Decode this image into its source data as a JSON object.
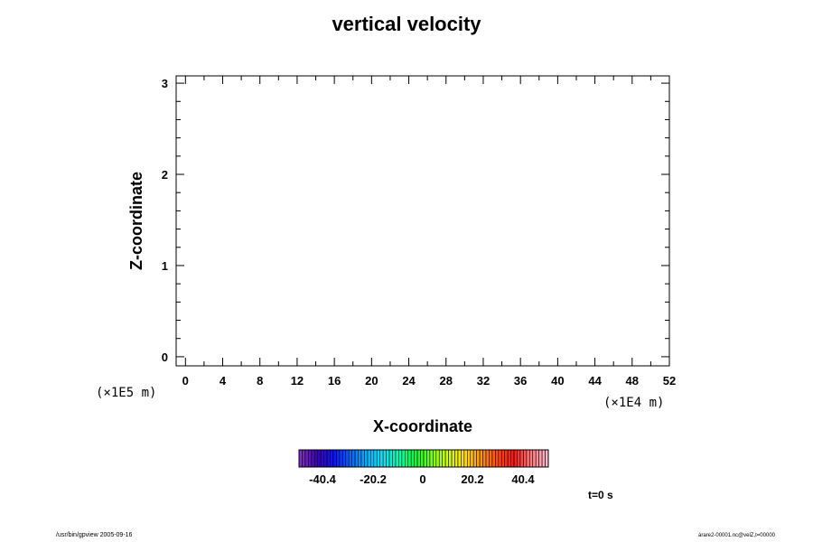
{
  "chart_data": {
    "type": "heatmap",
    "title": "vertical velocity",
    "xlabel": "X-coordinate",
    "ylabel": "Z-coordinate",
    "x_unit": "(×1E4 m)",
    "y_unit": "(×1E5 m)",
    "xlim": [
      -1,
      52
    ],
    "ylim": [
      -0.1,
      3.08
    ],
    "x_ticks": [
      0,
      4,
      8,
      12,
      16,
      20,
      24,
      28,
      32,
      36,
      40,
      44,
      48,
      52
    ],
    "y_ticks": [
      0,
      1,
      2,
      3
    ],
    "grid": false,
    "colorbar": {
      "ticks": [
        "-40.4",
        "-20.2",
        "0",
        "20.2",
        "40.4"
      ],
      "colors": [
        "#7f2fbf",
        "#3d00b5",
        "#1010ff",
        "#0064ff",
        "#00b0ff",
        "#00e6ff",
        "#00ffb0",
        "#00ff3c",
        "#7dff00",
        "#d2ff00",
        "#ffdc00",
        "#ff9600",
        "#ff4b00",
        "#ff1414",
        "#ff7878",
        "#ffb4c8"
      ]
    },
    "time_label": "t=0 s"
  },
  "footer": {
    "left": "/usr/bin/gpview 2005-09-16",
    "right": "arare2-00001.nc@velZ,t=00000"
  }
}
